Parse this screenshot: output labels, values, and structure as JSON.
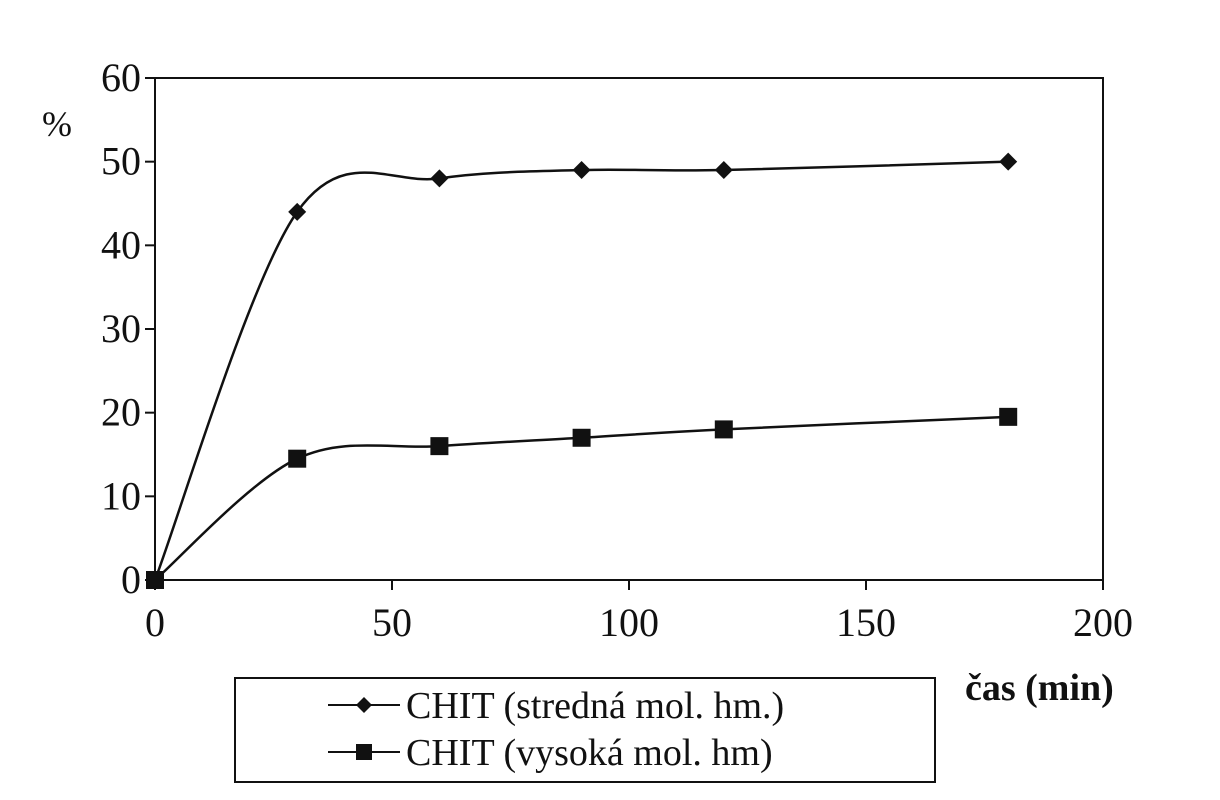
{
  "chart_data": {
    "type": "line",
    "title": "",
    "xlabel": "čas (min)",
    "ylabel": "%",
    "xlim": [
      0,
      200
    ],
    "ylim": [
      0,
      60
    ],
    "xticks": [
      0,
      50,
      100,
      150,
      200
    ],
    "yticks": [
      0,
      10,
      20,
      30,
      40,
      50,
      60
    ],
    "xtick_labels": [
      "0",
      "50",
      "100",
      "150",
      "200"
    ],
    "ytick_labels": [
      "0",
      "10",
      "20",
      "30",
      "40",
      "50",
      "60"
    ],
    "grid": false,
    "legend_position": "bottom",
    "series": [
      {
        "name": "CHIT (stredná mol. hm.)",
        "marker": "diamond",
        "color": "#111111",
        "x": [
          0,
          30,
          60,
          90,
          120,
          180
        ],
        "y": [
          0,
          44,
          48,
          49,
          49,
          50
        ]
      },
      {
        "name": "CHIT (vysoká mol. hm)",
        "marker": "square",
        "color": "#111111",
        "x": [
          0,
          30,
          60,
          90,
          120,
          180
        ],
        "y": [
          0,
          14.5,
          16,
          17,
          18,
          19.5
        ]
      }
    ]
  }
}
